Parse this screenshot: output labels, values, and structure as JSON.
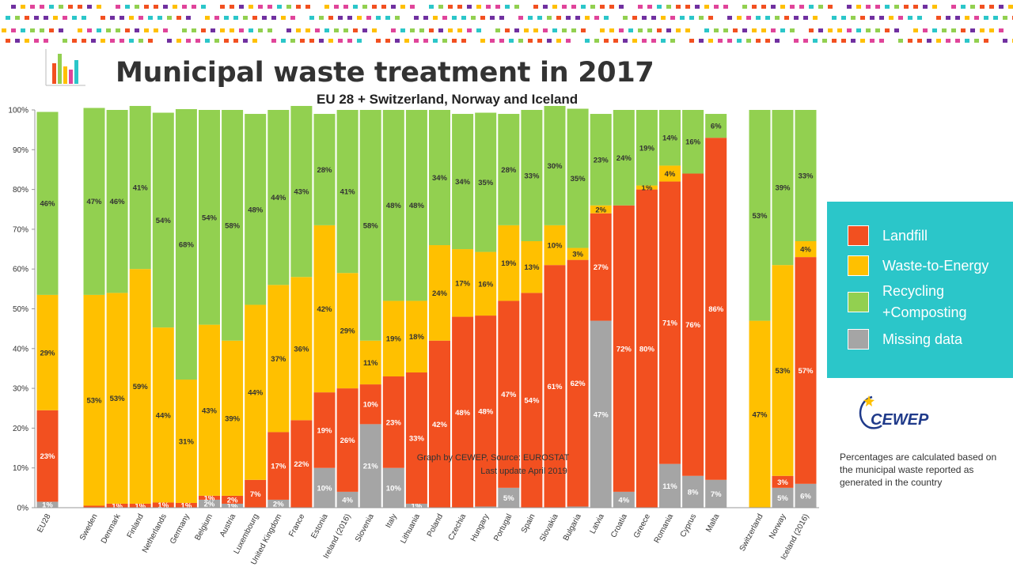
{
  "title": "Municipal waste treatment in 2017",
  "subtitle": "EU 28 + Switzerland, Norway and Iceland",
  "colors": {
    "landfill": "#f25020",
    "wte": "#ffc000",
    "recycling": "#92d050",
    "missing": "#a5a5a5"
  },
  "legend": [
    {
      "key": "landfill",
      "label": "Landfill"
    },
    {
      "key": "wte",
      "label": "Waste-to-Energy"
    },
    {
      "key": "recycling",
      "label": "Recycling +Composting"
    },
    {
      "key": "missing",
      "label": "Missing data"
    }
  ],
  "source_text": "Graph by CEWEP, Source: EUROSTAT",
  "update_text": "Last update April 2019",
  "logo_text": "CEWEP",
  "footnote": "Percentages are calculated based on the municipal waste reported as generated in the country",
  "chart_data": {
    "type": "bar",
    "stacked": true,
    "y_ticks": [
      "0%",
      "10%",
      "20%",
      "30%",
      "40%",
      "50%",
      "60%",
      "70%",
      "80%",
      "90%",
      "100%"
    ],
    "ylim": [
      0,
      100
    ],
    "categories": [
      "EU28",
      "Sweden",
      "Denmark",
      "Finland",
      "Netherlands",
      "Germany",
      "Belgium",
      "Austria",
      "Luxembourg",
      "United Kingdom",
      "France",
      "Estonia",
      "Ireland (2016)",
      "Slovenia",
      "Italy",
      "Lithuania",
      "Poland",
      "Czechia",
      "Hungary",
      "Portugal",
      "Spain",
      "Slovakia",
      "Bulgaria",
      "Latvia",
      "Croatia",
      "Greece",
      "Romania",
      "Cyprus",
      "Malta",
      "Switzerland",
      "Norway",
      "Iceland (2016)"
    ],
    "group_breaks_after": [
      "EU28",
      "Malta"
    ],
    "series": [
      {
        "name": "Missing data",
        "key": "missing",
        "values": [
          1.5,
          0,
          0,
          0,
          0,
          0,
          2,
          1,
          0,
          2,
          0,
          10,
          4,
          21,
          10,
          1,
          0,
          0,
          0.3,
          5,
          0,
          0,
          0.3,
          47,
          4,
          0,
          11,
          8,
          7,
          0,
          5,
          6
        ],
        "labels": [
          "1%",
          "",
          "",
          "",
          "",
          "",
          "2%",
          "1%",
          "",
          "2%",
          "",
          "10%",
          "4%",
          "21%",
          "10%",
          "1%",
          "",
          "",
          "",
          "5%",
          "",
          "",
          "",
          "47%",
          "4%",
          "",
          "11%",
          "8%",
          "7%",
          "",
          "5%",
          "6%"
        ]
      },
      {
        "name": "Landfill",
        "key": "landfill",
        "values": [
          23,
          0.5,
          1,
          1,
          1.3,
          1.2,
          1,
          2,
          7,
          17,
          22,
          19,
          26,
          10,
          23,
          33,
          42,
          48,
          48,
          47,
          54,
          61,
          62,
          27,
          72,
          80,
          71,
          76,
          86,
          0,
          3,
          57
        ],
        "labels": [
          "23%",
          "",
          "1%",
          "1%",
          "1%",
          "1%",
          "1%",
          "2%",
          "7%",
          "17%",
          "22%",
          "19%",
          "26%",
          "10%",
          "23%",
          "33%",
          "42%",
          "48%",
          "48%",
          "47%",
          "54%",
          "61%",
          "62%",
          "27%",
          "72%",
          "80%",
          "71%",
          "76%",
          "86%",
          "",
          "3%",
          "57%"
        ]
      },
      {
        "name": "Waste-to-Energy",
        "key": "wte",
        "values": [
          29,
          53,
          53,
          59,
          44,
          31,
          43,
          39,
          44,
          37,
          36,
          42,
          29,
          11,
          19,
          18,
          24,
          17,
          16,
          19,
          13,
          10,
          3,
          2,
          0,
          1,
          4,
          0,
          0,
          47,
          53,
          4
        ],
        "labels": [
          "29%",
          "53%",
          "53%",
          "59%",
          "44%",
          "31%",
          "43%",
          "39%",
          "44%",
          "37%",
          "36%",
          "42%",
          "29%",
          "11%",
          "19%",
          "18%",
          "24%",
          "17%",
          "16%",
          "19%",
          "13%",
          "10%",
          "3%",
          "2%",
          "",
          "1%",
          "4%",
          "",
          "",
          "47%",
          "53%",
          "4%"
        ]
      },
      {
        "name": "Recycling +Composting",
        "key": "recycling",
        "values": [
          46,
          47,
          46,
          41,
          54,
          68,
          54,
          58,
          48,
          44,
          43,
          28,
          41,
          58,
          48,
          48,
          34,
          34,
          35,
          28,
          33,
          30,
          35,
          23,
          24,
          19,
          14,
          16,
          6,
          53,
          39,
          33
        ],
        "labels": [
          "46%",
          "47%",
          "46%",
          "41%",
          "54%",
          "68%",
          "54%",
          "58%",
          "48%",
          "44%",
          "43%",
          "28%",
          "41%",
          "58%",
          "48%",
          "48%",
          "34%",
          "34%",
          "35%",
          "28%",
          "33%",
          "30%",
          "35%",
          "23%",
          "24%",
          "19%",
          "14%",
          "16%",
          "6%",
          "53%",
          "39%",
          "33%"
        ]
      }
    ]
  }
}
